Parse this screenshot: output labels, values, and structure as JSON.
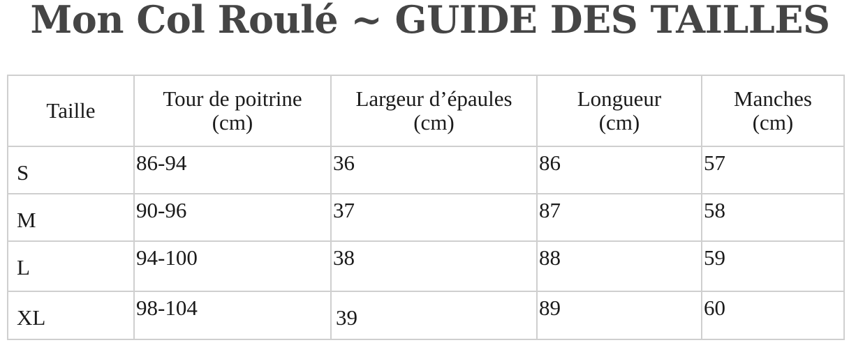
{
  "title": "Mon Col Roulé ~ GUIDE DES TAILLES",
  "table": {
    "headers": [
      {
        "line1": "Taille",
        "line2": ""
      },
      {
        "line1": "Tour de poitrine",
        "line2": "(cm)"
      },
      {
        "line1": "Largeur d’épaules",
        "line2": "(cm)"
      },
      {
        "line1": "Longueur",
        "line2": "(cm)"
      },
      {
        "line1": "Manches",
        "line2": "(cm)"
      }
    ],
    "rows": [
      [
        "S",
        "86-94",
        "36",
        "86",
        "57"
      ],
      [
        "M",
        "90-96",
        "37",
        "87",
        "58"
      ],
      [
        "L",
        "94-100",
        "38",
        "88",
        "59"
      ],
      [
        "XL",
        "98-104",
        "39",
        "89",
        "60"
      ]
    ]
  }
}
